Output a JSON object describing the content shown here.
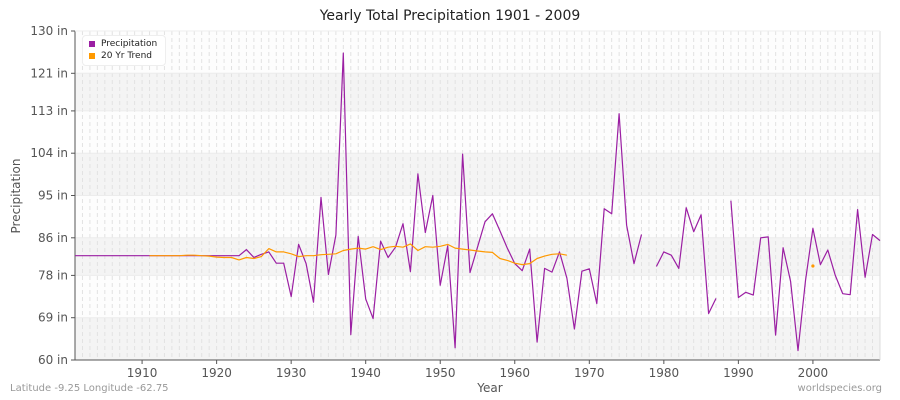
{
  "header": {
    "title": "Yearly Total Precipitation 1901 - 2009"
  },
  "footer": {
    "location": "Latitude -9.25 Longitude -62.75",
    "source": "worldspecies.org"
  },
  "legend": [
    {
      "label": "Precipitation",
      "color": "#9b1fa3"
    },
    {
      "label": "20 Yr Trend",
      "color": "#ff9900"
    }
  ],
  "chart_data": {
    "type": "line",
    "title": "Yearly Total Precipitation 1901 - 2009",
    "xlabel": "Year",
    "ylabel": "Precipitation",
    "ylim": [
      60,
      130
    ],
    "xlim": [
      1901,
      2009
    ],
    "y_ticks": [
      "60 in",
      "69 in",
      "78 in",
      "86 in",
      "95 in",
      "104 in",
      "113 in",
      "121 in",
      "130 in"
    ],
    "y_tick_values": [
      60,
      69,
      78,
      86,
      95,
      104,
      113,
      121,
      130
    ],
    "x_ticks": [
      "1910",
      "1920",
      "1930",
      "1940",
      "1950",
      "1960",
      "1970",
      "1980",
      "1990",
      "2000"
    ],
    "x_tick_values": [
      1910,
      1920,
      1930,
      1940,
      1950,
      1960,
      1970,
      1980,
      1990,
      2000
    ],
    "grid": true,
    "legend_position": "top-left",
    "x": [
      1901,
      1902,
      1903,
      1904,
      1905,
      1906,
      1907,
      1908,
      1909,
      1910,
      1911,
      1912,
      1913,
      1914,
      1915,
      1916,
      1917,
      1918,
      1919,
      1920,
      1921,
      1922,
      1923,
      1924,
      1925,
      1926,
      1927,
      1928,
      1929,
      1930,
      1931,
      1932,
      1933,
      1934,
      1935,
      1936,
      1937,
      1938,
      1939,
      1940,
      1941,
      1942,
      1943,
      1944,
      1945,
      1946,
      1947,
      1948,
      1949,
      1950,
      1951,
      1952,
      1953,
      1954,
      1955,
      1956,
      1957,
      1958,
      1959,
      1960,
      1961,
      1962,
      1963,
      1964,
      1965,
      1966,
      1967,
      1968,
      1969,
      1970,
      1971,
      1972,
      1973,
      1974,
      1975,
      1976,
      1977,
      1978,
      1979,
      1980,
      1981,
      1982,
      1983,
      1984,
      1985,
      1986,
      1987,
      1988,
      1989,
      1990,
      1991,
      1992,
      1993,
      1994,
      1995,
      1996,
      1997,
      1998,
      1999,
      2000,
      2001,
      2002,
      2003,
      2004,
      2005,
      2006,
      2007,
      2008,
      2009
    ],
    "series": [
      {
        "name": "Precipitation",
        "color": "#9b1fa3",
        "values": [
          82.2,
          82.2,
          82.2,
          82.2,
          82.2,
          82.2,
          82.2,
          82.2,
          82.2,
          82.2,
          82.2,
          82.2,
          82.2,
          82.2,
          82.2,
          82.2,
          82.2,
          82.2,
          82.2,
          82.2,
          82.2,
          82.2,
          82.2,
          83.5,
          81.8,
          82.5,
          83.0,
          80.6,
          80.6,
          73.5,
          84.6,
          80.5,
          72.3,
          94.6,
          78.2,
          86.6,
          125.3,
          65.4,
          86.3,
          73.0,
          68.8,
          85.3,
          81.8,
          84.0,
          89.0,
          78.8,
          99.6,
          87.1,
          95.0,
          75.9,
          84.3,
          62.6,
          103.8,
          78.6,
          84.0,
          89.4,
          91.1,
          87.5,
          83.8,
          80.5,
          79.0,
          83.6,
          63.8,
          79.5,
          78.7,
          83.0,
          77.4,
          66.6,
          78.9,
          79.4,
          72.0,
          92.2,
          91.1,
          112.4,
          88.7,
          80.5,
          86.7,
          null,
          79.9,
          83.0,
          82.3,
          79.5,
          92.4,
          87.3,
          90.9,
          69.9,
          73.1,
          null,
          93.9,
          73.3,
          74.4,
          73.8,
          86.0,
          86.2,
          65.3,
          83.9,
          76.7,
          62.0,
          76.9,
          88.0,
          80.3,
          83.4,
          78.0,
          74.1,
          73.9,
          92.0,
          77.6,
          86.7,
          85.4
        ]
      },
      {
        "name": "20 Yr Trend",
        "color": "#ff9900",
        "values": [
          null,
          null,
          null,
          null,
          null,
          null,
          null,
          null,
          null,
          null,
          82.2,
          82.2,
          82.2,
          82.2,
          82.2,
          82.3,
          82.3,
          82.2,
          82.1,
          81.9,
          81.8,
          81.8,
          81.3,
          81.8,
          81.6,
          82.0,
          83.7,
          83.0,
          83.0,
          82.6,
          82.0,
          82.2,
          82.2,
          82.4,
          82.5,
          82.6,
          83.3,
          83.6,
          83.8,
          83.6,
          84.1,
          83.5,
          84.0,
          84.2,
          84.0,
          84.7,
          83.3,
          84.1,
          84.0,
          84.2,
          84.6,
          83.8,
          83.6,
          83.4,
          83.2,
          83.0,
          82.9,
          81.6,
          81.2,
          80.6,
          80.3,
          80.5,
          81.6,
          82.1,
          82.5,
          82.6,
          82.3,
          null,
          null,
          null,
          null,
          null,
          null,
          null,
          null,
          null,
          null,
          null,
          null,
          null,
          null,
          null,
          null,
          null,
          null,
          null,
          null,
          null,
          null,
          null,
          null,
          null,
          null,
          null,
          null,
          null,
          null,
          null,
          null,
          80.0,
          null,
          null,
          null,
          null,
          null,
          null,
          null,
          null,
          null
        ]
      }
    ]
  }
}
